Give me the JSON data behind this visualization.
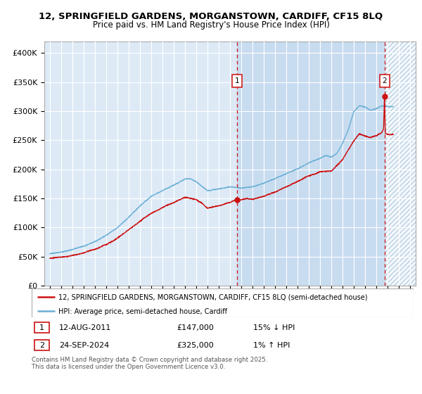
{
  "title_line1": "12, SPRINGFIELD GARDENS, MORGANSTOWN, CARDIFF, CF15 8LQ",
  "title_line2": "Price paid vs. HM Land Registry's House Price Index (HPI)",
  "ylim": [
    0,
    420000
  ],
  "xlim_start": 1994.5,
  "xlim_end": 2027.5,
  "bg_color": "#ddeaf6",
  "highlight_color": "#c8dcf0",
  "grid_color": "#ffffff",
  "hpi_color": "#6aafd6",
  "price_color": "#cc1111",
  "vline_color": "#cc1111",
  "marker1_date": 2011.61,
  "marker2_date": 2024.73,
  "marker1_price": 147000,
  "marker2_price": 325000,
  "legend_label1": "12, SPRINGFIELD GARDENS, MORGANSTOWN, CARDIFF, CF15 8LQ (semi-detached house)",
  "legend_label2": "HPI: Average price, semi-detached house, Cardiff",
  "info1_num": "1",
  "info1_date": "12-AUG-2011",
  "info1_price": "£147,000",
  "info1_hpi": "15% ↓ HPI",
  "info2_num": "2",
  "info2_date": "24-SEP-2024",
  "info2_price": "£325,000",
  "info2_hpi": "1% ↑ HPI",
  "footer": "Contains HM Land Registry data © Crown copyright and database right 2025.\nThis data is licensed under the Open Government Licence v3.0.",
  "yticks": [
    0,
    50000,
    100000,
    150000,
    200000,
    250000,
    300000,
    350000,
    400000
  ],
  "ytick_labels": [
    "£0",
    "£50K",
    "£100K",
    "£150K",
    "£200K",
    "£250K",
    "£300K",
    "£350K",
    "£400K"
  ],
  "xticks": [
    1995,
    1996,
    1997,
    1998,
    1999,
    2000,
    2001,
    2002,
    2003,
    2004,
    2005,
    2006,
    2007,
    2008,
    2009,
    2010,
    2011,
    2012,
    2013,
    2014,
    2015,
    2016,
    2017,
    2018,
    2019,
    2020,
    2021,
    2022,
    2023,
    2024,
    2025,
    2026,
    2027
  ]
}
